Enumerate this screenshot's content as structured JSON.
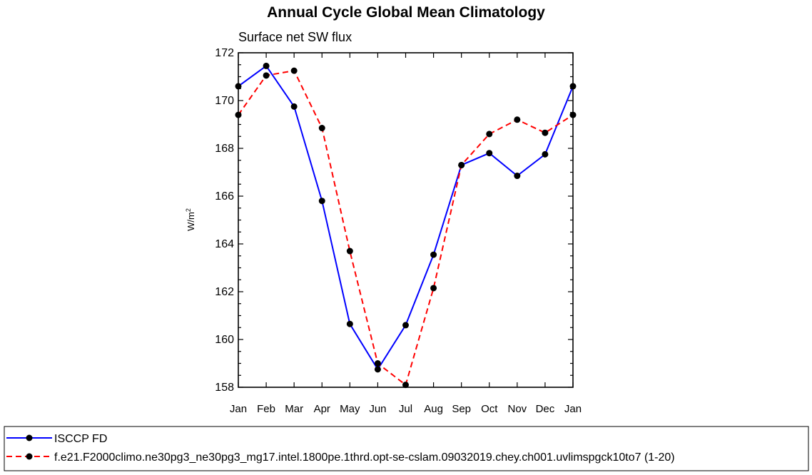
{
  "chart_data": {
    "type": "line",
    "title": "Annual Cycle Global Mean Climatology",
    "subtitle": "Surface net SW flux",
    "ylabel": "W/m",
    "ylabel_sup": "2",
    "xlabel": "",
    "categories": [
      "Jan",
      "Feb",
      "Mar",
      "Apr",
      "May",
      "Jun",
      "Jul",
      "Aug",
      "Sep",
      "Oct",
      "Nov",
      "Dec",
      "Jan"
    ],
    "ylim": [
      158,
      172
    ],
    "yticks": [
      "158",
      "160",
      "162",
      "164",
      "166",
      "168",
      "170",
      "172"
    ],
    "grid": false,
    "legend_position": "bottom",
    "series": [
      {
        "name": "ISCCP FD",
        "color": "#0000ff",
        "style": "solid",
        "values": [
          170.6,
          171.45,
          169.75,
          165.8,
          160.65,
          158.75,
          160.6,
          163.55,
          167.3,
          167.8,
          166.85,
          167.75,
          170.6
        ]
      },
      {
        "name": "f.e21.F2000climo.ne30pg3_ne30pg3_mg17.intel.1800pe.1thrd.opt-se-cslam.09032019.chey.ch001.uvlimspgck10to7 (1-20)",
        "color": "#ff0000",
        "style": "dashed",
        "values": [
          169.4,
          171.05,
          171.25,
          168.85,
          163.7,
          159.0,
          158.1,
          162.15,
          167.3,
          168.6,
          169.2,
          168.65,
          169.4
        ]
      }
    ]
  }
}
